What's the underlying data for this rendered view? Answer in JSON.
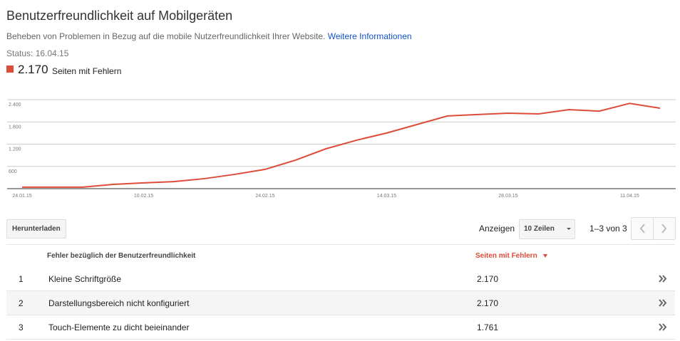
{
  "header": {
    "title": "Benutzerfreundlichkeit auf Mobilgeräten",
    "description": "Beheben von Problemen in Bezug auf die mobile Nutzerfreundlichkeit Ihrer Website.",
    "link": "Weitere Informationen",
    "status": "Status: 16.04.15",
    "total": "2.170"
  },
  "chart_data": {
    "type": "line",
    "series": [
      {
        "name": "Seiten mit Fehlern",
        "color": "#dd4b39",
        "values": [
          40,
          40,
          40,
          115,
          155,
          190,
          270,
          385,
          520,
          770,
          1075,
          1305,
          1500,
          1730,
          1960,
          2000,
          2035,
          2015,
          2130,
          2090,
          2300,
          2170
        ]
      }
    ],
    "categories": [
      "24.01.15",
      null,
      null,
      null,
      "10.02.15",
      null,
      null,
      null,
      "24.02.15",
      null,
      null,
      null,
      "14.03.15",
      null,
      null,
      null,
      "28.03.15",
      null,
      null,
      null,
      "11.04.15",
      null
    ],
    "ylim": [
      0,
      2400
    ],
    "yticks": [
      600,
      {
        "value": 1200,
        "label": "1.200"
      },
      {
        "value": 1800,
        "label": "1.800"
      },
      {
        "value": 2400,
        "label": "2.400"
      }
    ],
    "grid": true
  },
  "toolbar": {
    "download": "Herunterladen",
    "show": "Anzeigen",
    "rows_select": "10 Zeilen",
    "range": "1–3 von 3"
  },
  "table": {
    "columns": [
      "Fehler bezüglich der Benutzerfreundlichkeit",
      "Seiten mit Fehlern"
    ],
    "rows": [
      [
        "1",
        "Kleine Schriftgröße",
        "2.170"
      ],
      [
        "2",
        "Darstellungsbereich nicht konfiguriert",
        "2.170"
      ],
      [
        "3",
        "Touch-Elemente zu dicht beieinander",
        "1.761"
      ]
    ]
  }
}
